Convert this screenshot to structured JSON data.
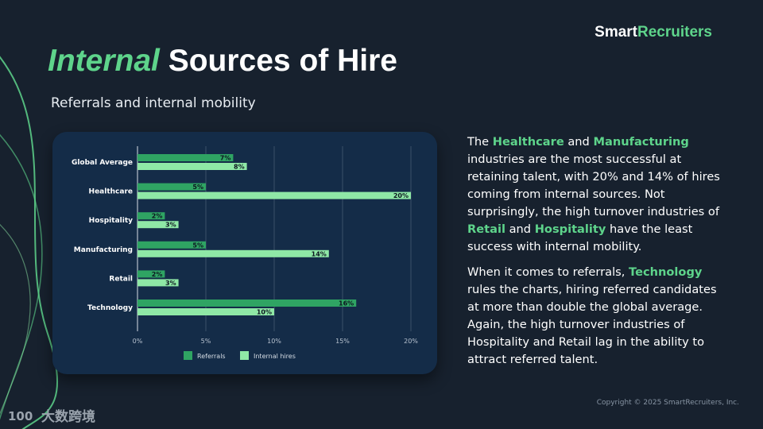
{
  "brand": {
    "part1": "Smart",
    "part2": "Recruiters"
  },
  "header": {
    "title_accent": "Internal",
    "title_rest": "Sources of Hire",
    "subtitle": "Referrals and internal mobility"
  },
  "body": {
    "p1": [
      {
        "t": "The ",
        "hl": false
      },
      {
        "t": "Healthcare",
        "hl": true
      },
      {
        "t": " and ",
        "hl": false
      },
      {
        "t": "Manufacturing",
        "hl": true
      },
      {
        "t": " industries are the most successful at retaining talent, with 20% and 14% of hires coming from internal sources. Not surprisingly, the high turnover industries of ",
        "hl": false
      },
      {
        "t": "Retail",
        "hl": true
      },
      {
        "t": " and ",
        "hl": false
      },
      {
        "t": "Hospitality",
        "hl": true
      },
      {
        "t": " have the least success with internal mobility.",
        "hl": false
      }
    ],
    "p2": [
      {
        "t": "When it comes to referrals, ",
        "hl": false
      },
      {
        "t": "Technology",
        "hl": true
      },
      {
        "t": " rules the charts, hiring referred candidates at more than double the global average. Again, the high turnover industries of Hospitality and Retail lag in the ability to attract referred talent.",
        "hl": false
      }
    ]
  },
  "copyright": "Copyright © 2025 SmartRecruiters, Inc.",
  "watermark": {
    "text": "大数跨境",
    "logo_text": "100"
  },
  "colors": {
    "accent": "#5ed48b",
    "referrals": "#2fa463",
    "internal": "#8fe8a6",
    "card": "#142c48",
    "background": "#17212e"
  },
  "chart_data": {
    "type": "bar",
    "orientation": "horizontal",
    "categories": [
      "Global Average",
      "Healthcare",
      "Hospitality",
      "Manufacturing",
      "Retail",
      "Technology"
    ],
    "series": [
      {
        "name": "Referrals",
        "values": [
          7,
          5,
          2,
          5,
          2,
          16
        ]
      },
      {
        "name": "Internal hires",
        "values": [
          8,
          20,
          3,
          14,
          3,
          10
        ]
      }
    ],
    "xlim": [
      0,
      20
    ],
    "xticks": [
      0,
      5,
      10,
      15,
      20
    ],
    "tick_format": "%",
    "data_label_format": "%",
    "grid": true,
    "legend": "bottom"
  }
}
